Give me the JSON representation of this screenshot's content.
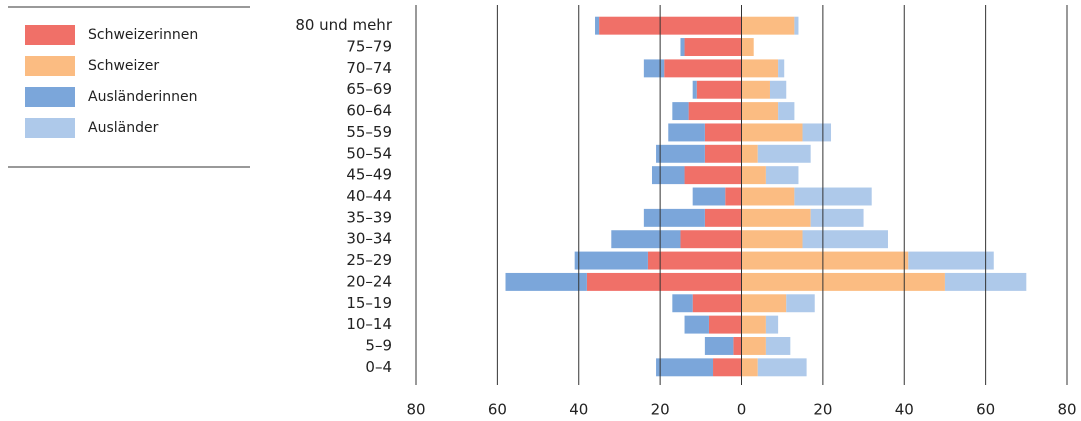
{
  "chart_data": {
    "type": "bar",
    "orientation": "horizontal",
    "stacked": true,
    "categories": [
      "80 und mehr",
      "75–79",
      "70–74",
      "65–69",
      "60–64",
      "55–59",
      "50–54",
      "45–49",
      "40–44",
      "35–39",
      "30–34",
      "25–29",
      "20–24",
      "15–19",
      "10–14",
      "5–9",
      "0–4"
    ],
    "series": [
      {
        "name": "Schweizerinnen",
        "color": "#f07068",
        "values": [
          -35,
          -14,
          -19,
          -11,
          -13,
          -9,
          -9,
          -14,
          -4,
          -9,
          -15,
          -23,
          -38,
          -12,
          -8,
          -2,
          -7
        ]
      },
      {
        "name": "Schweizer",
        "color": "#fbbc82",
        "values": [
          13,
          3,
          9,
          7,
          9,
          15,
          4,
          6,
          13,
          17,
          15,
          41,
          50,
          11,
          6,
          6,
          4
        ]
      },
      {
        "name": "Ausländerinnen",
        "color": "#7ba6da",
        "values": [
          -1,
          -1,
          -5,
          -1,
          -4,
          -9,
          -12,
          -8,
          -8,
          -15,
          -17,
          -18,
          -20,
          -5,
          -6,
          -7,
          -14
        ]
      },
      {
        "name": "Ausländer",
        "color": "#aec9ea",
        "values": [
          1,
          0,
          1.5,
          4,
          4,
          7,
          13,
          8,
          19,
          13,
          21,
          21,
          20,
          7,
          3,
          6,
          12
        ]
      }
    ],
    "xlim": [
      -80,
      80
    ],
    "xticks": [
      {
        "value": -80,
        "label": "80"
      },
      {
        "value": -60,
        "label": "60"
      },
      {
        "value": -40,
        "label": "40"
      },
      {
        "value": -20,
        "label": "20"
      },
      0,
      20,
      40,
      60,
      80
    ],
    "grid": true
  }
}
